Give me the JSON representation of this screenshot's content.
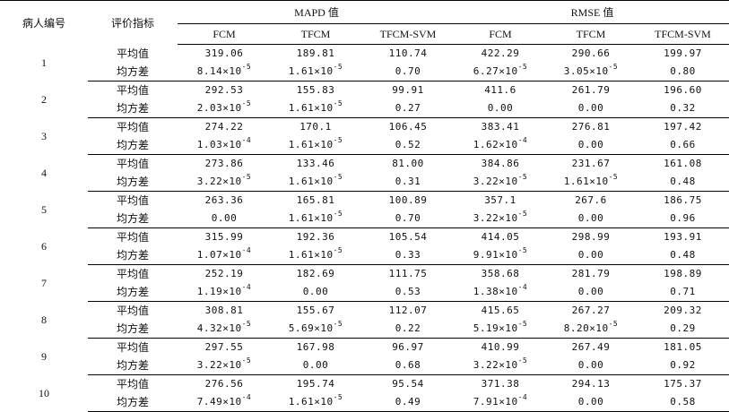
{
  "headers": {
    "patient_id": "病人编号",
    "metric": "评价指标",
    "group_mapd": "MAPD 值",
    "group_rmse": "RMSE 值",
    "methods": [
      "FCM",
      "TFCM",
      "TFCM-SVM",
      "FCM",
      "TFCM",
      "TFCM-SVM"
    ]
  },
  "metric_labels": {
    "mean": "平均值",
    "variance": "均方差"
  },
  "patients": [
    {
      "id": "1",
      "mean": [
        "319.06",
        "189.81",
        "110.74",
        "422.29",
        "290.66",
        "199.97"
      ],
      "variance": [
        {
          "m": "8.14",
          "e": "-5"
        },
        {
          "m": "1.61",
          "e": "-5"
        },
        {
          "v": "0.70"
        },
        {
          "m": "6.27",
          "e": "-5"
        },
        {
          "m": "3.05",
          "e": "-5"
        },
        {
          "v": "0.80"
        }
      ]
    },
    {
      "id": "2",
      "mean": [
        "292.53",
        "155.83",
        "99.91",
        "411.6",
        "261.79",
        "196.60"
      ],
      "variance": [
        {
          "m": "2.03",
          "e": "-5"
        },
        {
          "m": "1.61",
          "e": "-5"
        },
        {
          "v": "0.27"
        },
        {
          "v": "0.00"
        },
        {
          "v": "0.00"
        },
        {
          "v": "0.32"
        }
      ]
    },
    {
      "id": "3",
      "mean": [
        "274.22",
        "170.1",
        "106.45",
        "383.41",
        "276.81",
        "197.42"
      ],
      "variance": [
        {
          "m": "1.03",
          "e": "-4"
        },
        {
          "m": "1.61",
          "e": "-5"
        },
        {
          "v": "0.52"
        },
        {
          "m": "1.62",
          "e": "-4"
        },
        {
          "v": "0.00"
        },
        {
          "v": "0.66"
        }
      ]
    },
    {
      "id": "4",
      "mean": [
        "273.86",
        "133.46",
        "81.00",
        "384.86",
        "231.67",
        "161.08"
      ],
      "variance": [
        {
          "m": "3.22",
          "e": "-5"
        },
        {
          "m": "1.61",
          "e": "-5"
        },
        {
          "v": "0.31"
        },
        {
          "m": "3.22",
          "e": "-5"
        },
        {
          "m": "1.61",
          "e": "-5"
        },
        {
          "v": "0.48"
        }
      ]
    },
    {
      "id": "5",
      "mean": [
        "263.36",
        "165.81",
        "100.89",
        "357.1",
        "267.6",
        "186.75"
      ],
      "variance": [
        {
          "v": "0.00"
        },
        {
          "m": "1.61",
          "e": "-5"
        },
        {
          "v": "0.70"
        },
        {
          "m": "3.22",
          "e": "-5"
        },
        {
          "v": "0.00"
        },
        {
          "v": "0.96"
        }
      ]
    },
    {
      "id": "6",
      "mean": [
        "315.99",
        "192.36",
        "105.54",
        "414.05",
        "298.99",
        "193.91"
      ],
      "variance": [
        {
          "m": "1.07",
          "e": "-4"
        },
        {
          "m": "1.61",
          "e": "-5"
        },
        {
          "v": "0.33"
        },
        {
          "m": "9.91",
          "e": "-5"
        },
        {
          "v": "0.00"
        },
        {
          "v": "0.48"
        }
      ]
    },
    {
      "id": "7",
      "mean": [
        "252.19",
        "182.69",
        "111.75",
        "358.68",
        "281.79",
        "198.89"
      ],
      "variance": [
        {
          "m": "1.19",
          "e": "-4"
        },
        {
          "v": "0.00"
        },
        {
          "v": "0.53"
        },
        {
          "m": "1.38",
          "e": "-4"
        },
        {
          "v": "0.00"
        },
        {
          "v": "0.71"
        }
      ]
    },
    {
      "id": "8",
      "mean": [
        "308.81",
        "155.67",
        "112.07",
        "415.65",
        "267.27",
        "209.32"
      ],
      "variance": [
        {
          "m": "4.32",
          "e": "-5"
        },
        {
          "m": "5.69",
          "e": "-5"
        },
        {
          "v": "0.22"
        },
        {
          "m": "5.19",
          "e": "-5"
        },
        {
          "m": "8.20",
          "e": "-5"
        },
        {
          "v": "0.29"
        }
      ]
    },
    {
      "id": "9",
      "mean": [
        "297.55",
        "167.98",
        "96.97",
        "410.99",
        "267.49",
        "181.05"
      ],
      "variance": [
        {
          "m": "3.22",
          "e": "-5"
        },
        {
          "v": "0.00"
        },
        {
          "v": "0.68"
        },
        {
          "m": "3.22",
          "e": "-5"
        },
        {
          "v": "0.00"
        },
        {
          "v": "0.92"
        }
      ]
    },
    {
      "id": "10",
      "mean": [
        "276.56",
        "195.74",
        "95.54",
        "371.38",
        "294.13",
        "175.37"
      ],
      "variance": [
        {
          "m": "7.49",
          "e": "-4"
        },
        {
          "m": "1.61",
          "e": "-5"
        },
        {
          "v": "0.49"
        },
        {
          "m": "7.91",
          "e": "-4"
        },
        {
          "v": "0.00"
        },
        {
          "v": "0.58"
        }
      ]
    }
  ]
}
